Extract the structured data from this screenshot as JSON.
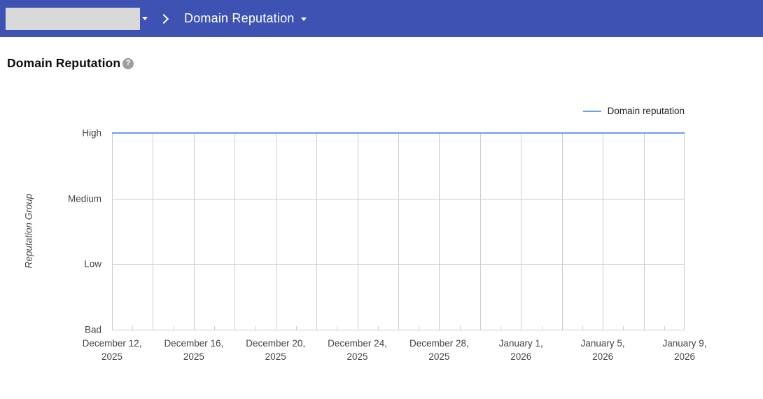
{
  "header": {
    "bg_color": "#3E52B4",
    "report_dropdown_label": "Domain Reputation"
  },
  "page": {
    "title": "Domain Reputation",
    "help_icon_glyph": "?"
  },
  "chart_data": {
    "type": "line",
    "title": "Domain Reputation",
    "ylabel": "Reputation Group",
    "y_categories": [
      "Bad",
      "Low",
      "Medium",
      "High"
    ],
    "x_start": "December 12, 2025",
    "x_end": "January 9, 2026",
    "days_total": 28,
    "x_major_labels": [
      "December 12, 2025",
      "December 16, 2025",
      "December 20, 2025",
      "December 24, 2025",
      "December 28, 2025",
      "January 1, 2026",
      "January 5, 2026",
      "January 9, 2026"
    ],
    "x_label_every_days": 4,
    "x_gridline_every_days": 2,
    "x_minor_tick_every_days": 2,
    "grid_color": "#CCCCCC",
    "grid": true,
    "legend_position": "top-right",
    "series": [
      {
        "name": "Domain reputation",
        "color": "#6D9EEB",
        "values": [
          "High",
          "High",
          "High",
          "High",
          "High",
          "High",
          "High",
          "High",
          "High",
          "High",
          "High",
          "High",
          "High",
          "High",
          "High",
          "High",
          "High",
          "High",
          "High",
          "High",
          "High",
          "High",
          "High",
          "High",
          "High",
          "High",
          "High",
          "High",
          "High"
        ]
      }
    ]
  }
}
